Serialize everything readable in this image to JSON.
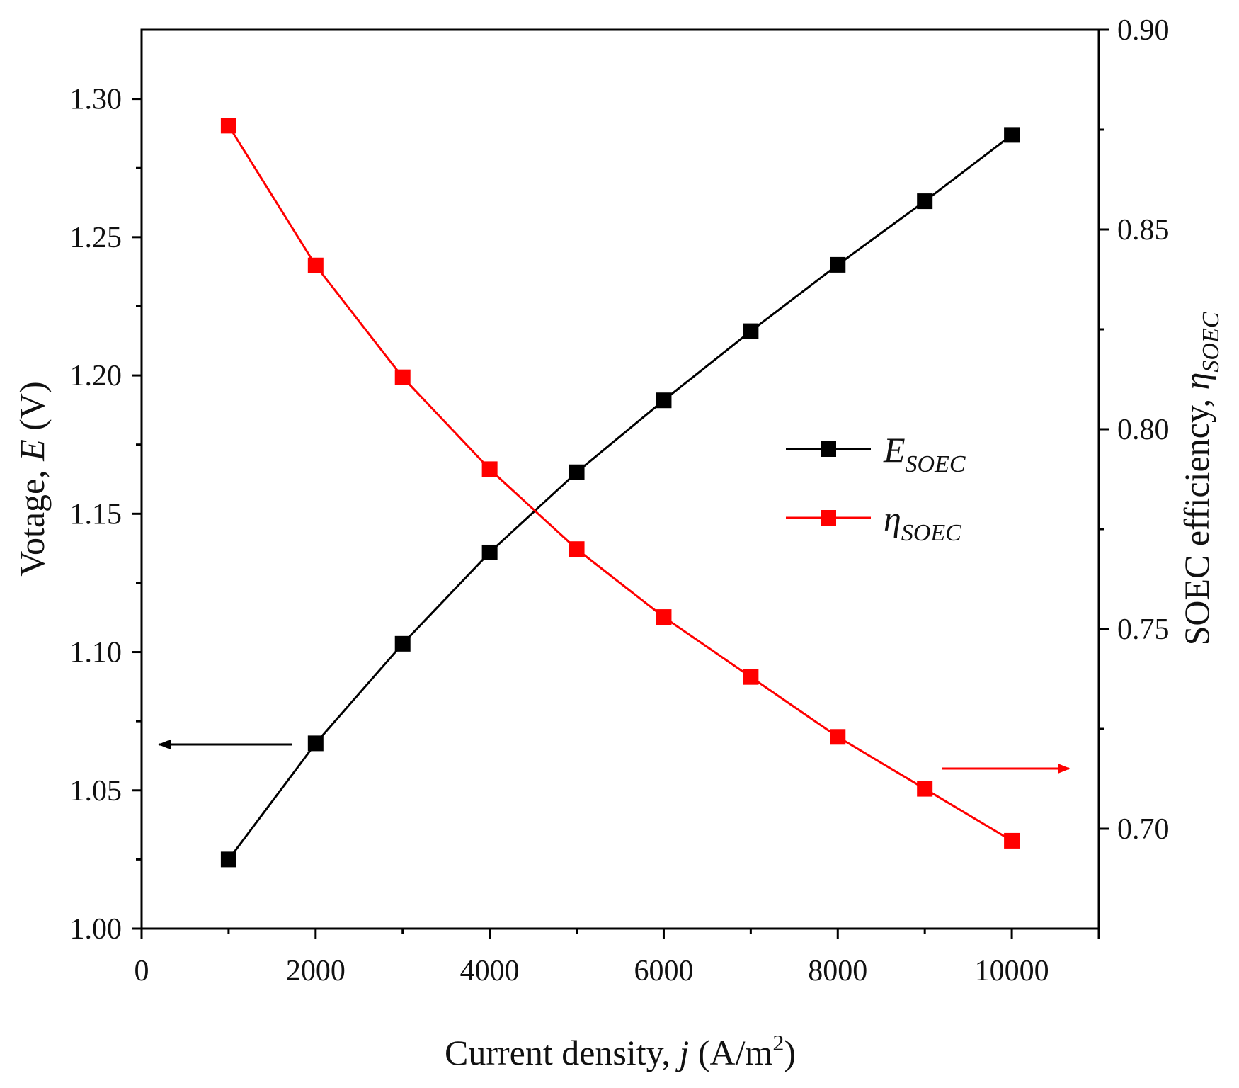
{
  "chart_data": {
    "type": "line",
    "x": [
      1000,
      2000,
      3000,
      4000,
      5000,
      6000,
      7000,
      8000,
      9000,
      10000
    ],
    "xlim": [
      0,
      11000
    ],
    "x_ticks": [
      "0",
      "2000",
      "4000",
      "6000",
      "8000",
      "10000"
    ],
    "x_tick_values": [
      0,
      2000,
      4000,
      6000,
      8000,
      10000
    ],
    "xlabel": {
      "prefix": "Current density, ",
      "var": "j",
      "unit": " (A/m",
      "sup": "2",
      "close": ")"
    },
    "y_left": {
      "label_prefix": "Votage, ",
      "label_var": "E",
      "label_unit": " (V)",
      "lim": [
        1.0,
        1.325
      ],
      "ticks": [
        "1.00",
        "1.05",
        "1.10",
        "1.15",
        "1.20",
        "1.25",
        "1.30"
      ],
      "tick_values": [
        1.0,
        1.05,
        1.1,
        1.15,
        1.2,
        1.25,
        1.3
      ]
    },
    "y_right": {
      "label_prefix": "SOEC efficiency, ",
      "label_var": "η",
      "label_sub": "SOEC",
      "lim": [
        0.675,
        0.9
      ],
      "ticks": [
        "0.70",
        "0.75",
        "0.80",
        "0.85",
        "0.90"
      ],
      "tick_values": [
        0.7,
        0.75,
        0.8,
        0.85,
        0.9
      ]
    },
    "series": [
      {
        "name": "E_SOEC",
        "legend_main": "E",
        "legend_sub": "SOEC",
        "axis": "left",
        "color": "#000000",
        "marker": "square",
        "values": [
          1.025,
          1.067,
          1.103,
          1.136,
          1.165,
          1.191,
          1.216,
          1.24,
          1.263,
          1.287
        ]
      },
      {
        "name": "η_SOEC",
        "legend_main": "η",
        "legend_sub": "SOEC",
        "axis": "right",
        "color": "#ff0000",
        "marker": "square",
        "values": [
          0.876,
          0.841,
          0.813,
          0.79,
          0.77,
          0.753,
          0.738,
          0.723,
          0.71,
          0.697
        ]
      }
    ],
    "annotations": [
      {
        "type": "arrow",
        "direction": "left",
        "points_to_axis": "left",
        "color": "#000000"
      },
      {
        "type": "arrow",
        "direction": "right",
        "points_to_axis": "right",
        "color": "#ff0000"
      }
    ],
    "legend_position": "center-right",
    "grid": false
  }
}
